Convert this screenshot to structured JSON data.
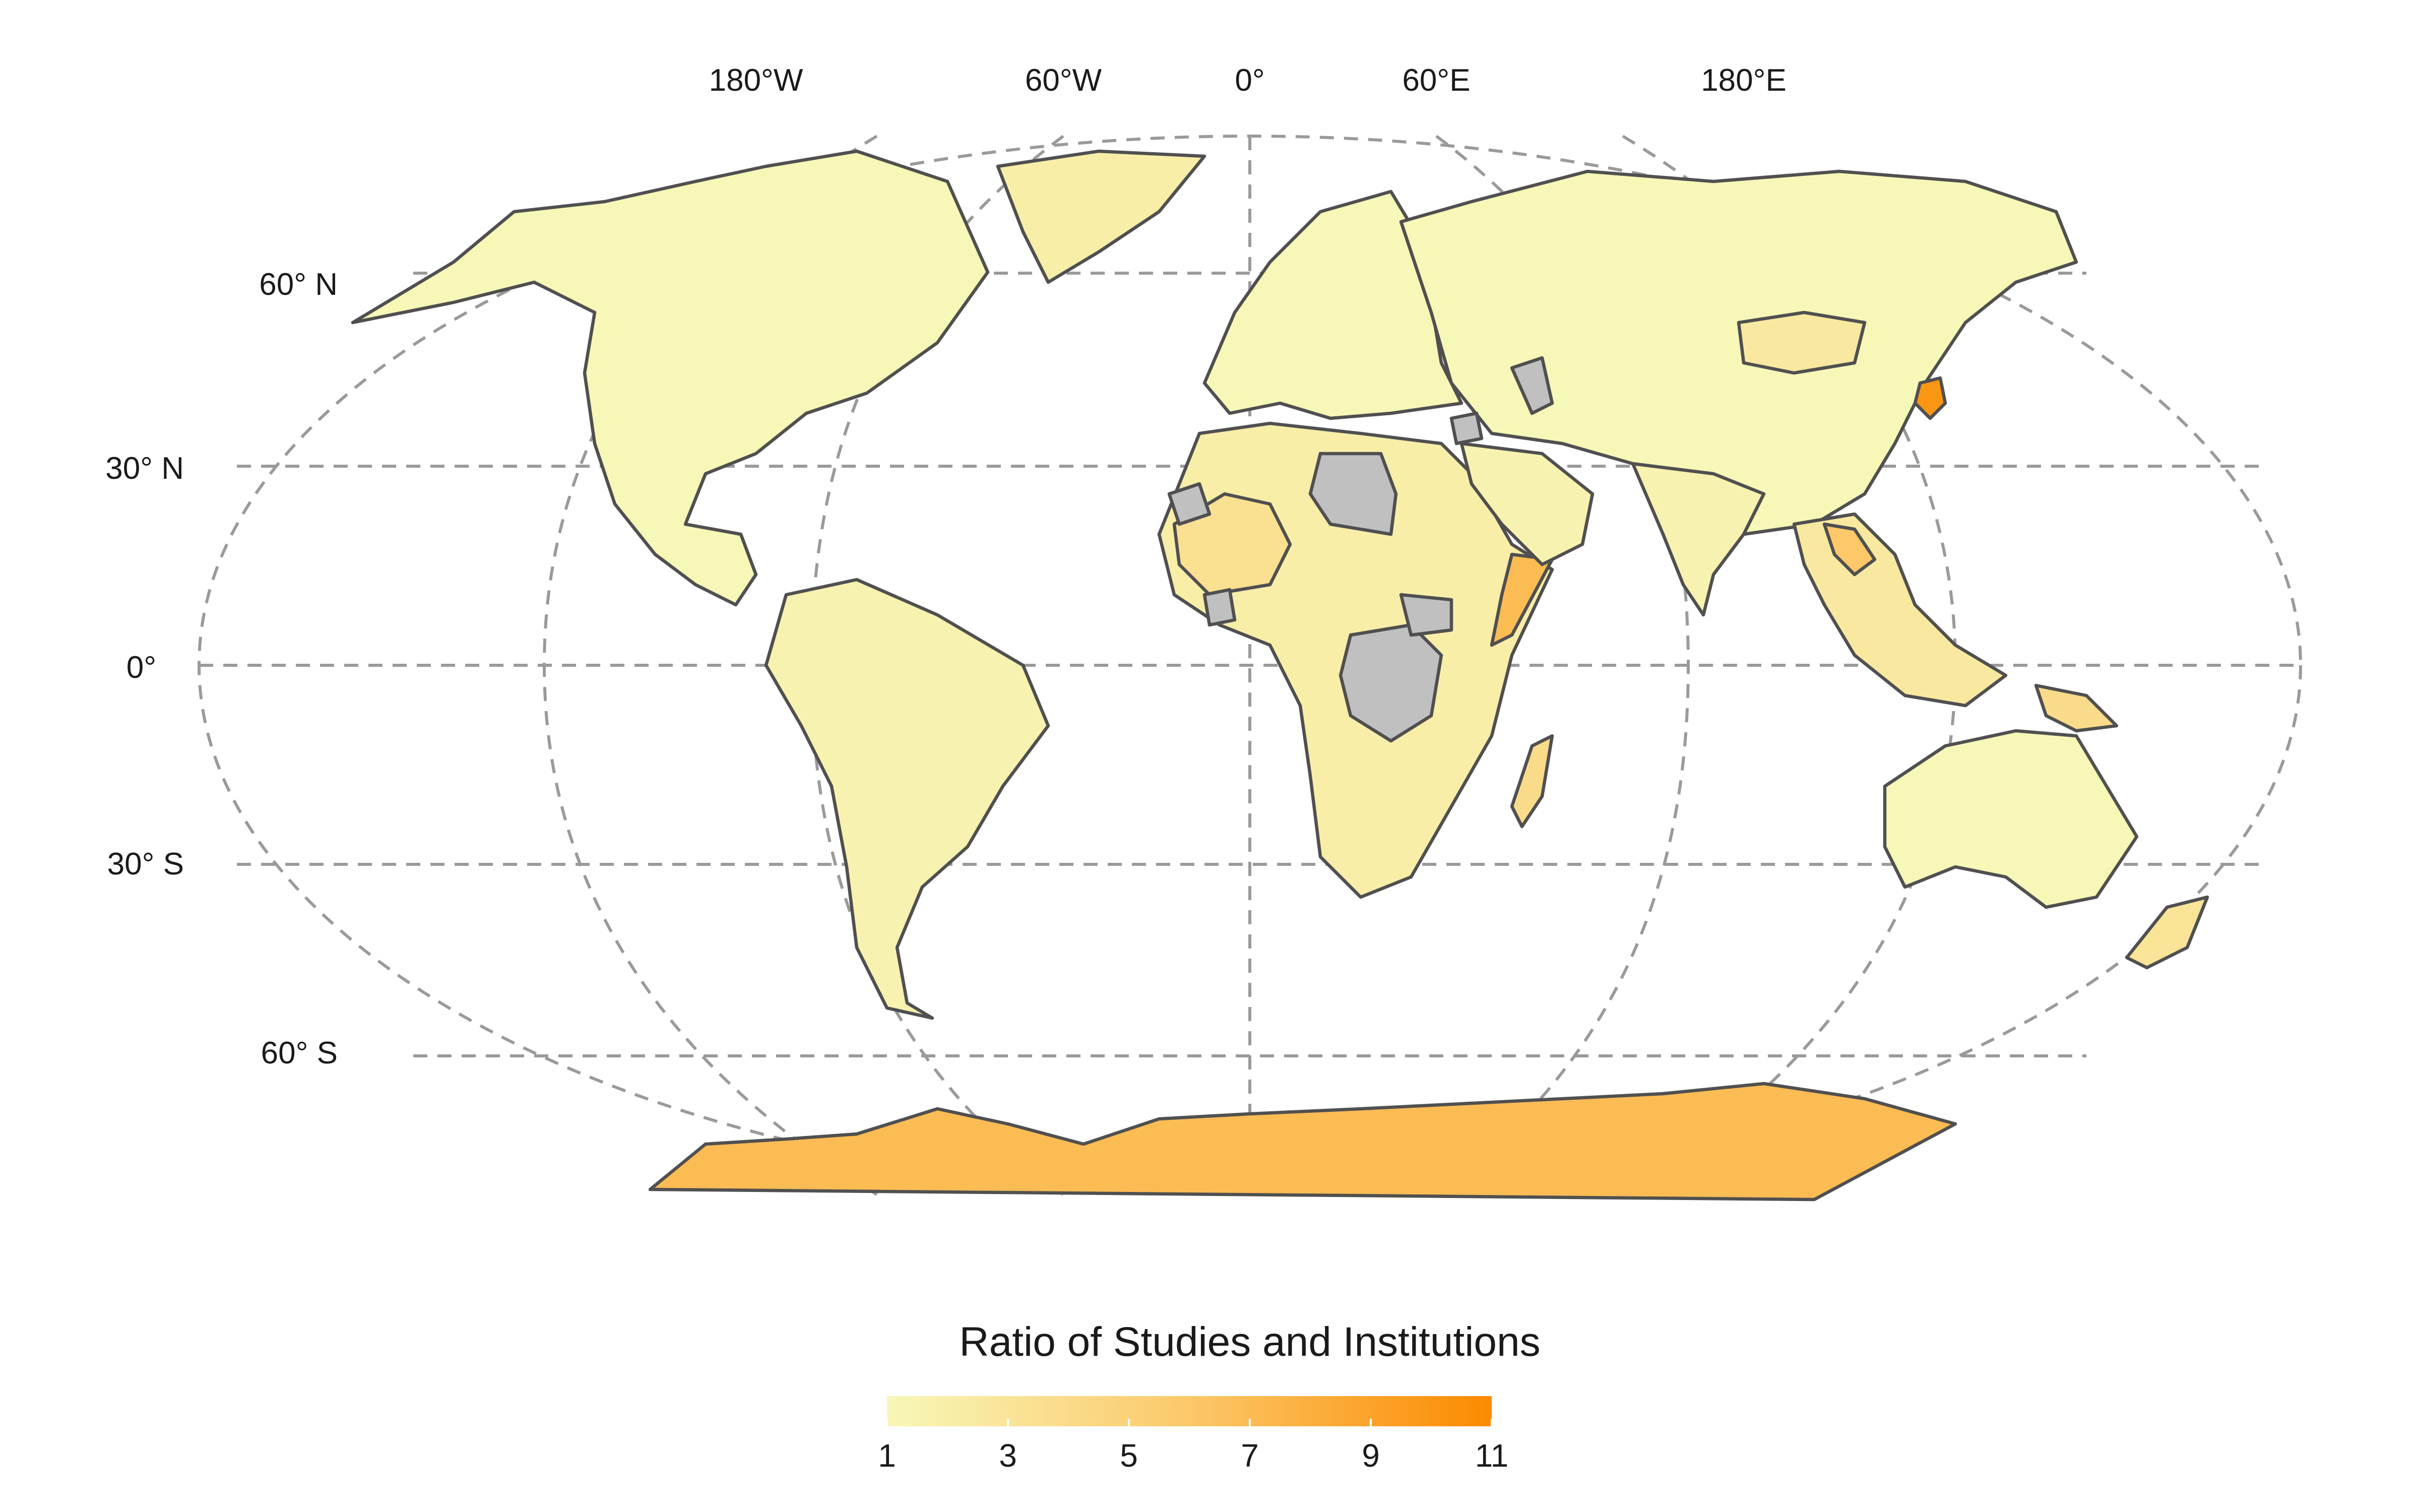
{
  "map": {
    "projection": "Robinson",
    "longitude_labels": [
      "180°W",
      "60°W",
      "0°",
      "60°E",
      "180°E"
    ],
    "latitude_labels": [
      "60° N",
      "30° N",
      "0°",
      "30° S",
      "60° S"
    ],
    "no_data_color": "#c0c0c0",
    "border_color": "#505050",
    "graticule_color": "#9a9a9a",
    "regions": [
      {
        "name": "North America",
        "value": 1
      },
      {
        "name": "Greenland",
        "value": 2
      },
      {
        "name": "South America",
        "value": 1.5
      },
      {
        "name": "Europe",
        "value": 1
      },
      {
        "name": "Africa",
        "value": 2
      },
      {
        "name": "West Africa",
        "value": 3.5
      },
      {
        "name": "Somalia",
        "value": 7
      },
      {
        "name": "Asia",
        "value": 1
      },
      {
        "name": "Mongolia",
        "value": 2.5
      },
      {
        "name": "Arabian Peninsula",
        "value": 1.5
      },
      {
        "name": "Indian Subcontinent",
        "value": 1.5
      },
      {
        "name": "Southeast Asia",
        "value": 2.5
      },
      {
        "name": "Laos",
        "value": 6
      },
      {
        "name": "North Korea",
        "value": 10
      },
      {
        "name": "Papua New Guinea",
        "value": 4
      },
      {
        "name": "Australia",
        "value": 1
      },
      {
        "name": "New Zealand",
        "value": 3
      },
      {
        "name": "Madagascar",
        "value": 4
      },
      {
        "name": "Antarctica",
        "value": 7
      }
    ],
    "no_data_regions": [
      "Libya",
      "Democratic Republic of the Congo",
      "South Sudan",
      "Western Sahara",
      "Côte d'Ivoire",
      "Turkmenistan",
      "Syria"
    ]
  },
  "legend": {
    "title": "Ratio of Studies and Institutions",
    "min": 1,
    "max": 11,
    "ticks": [
      "1",
      "3",
      "5",
      "7",
      "9",
      "11"
    ],
    "color_low": "#f7f7b8",
    "color_high": "#fb8a00"
  }
}
